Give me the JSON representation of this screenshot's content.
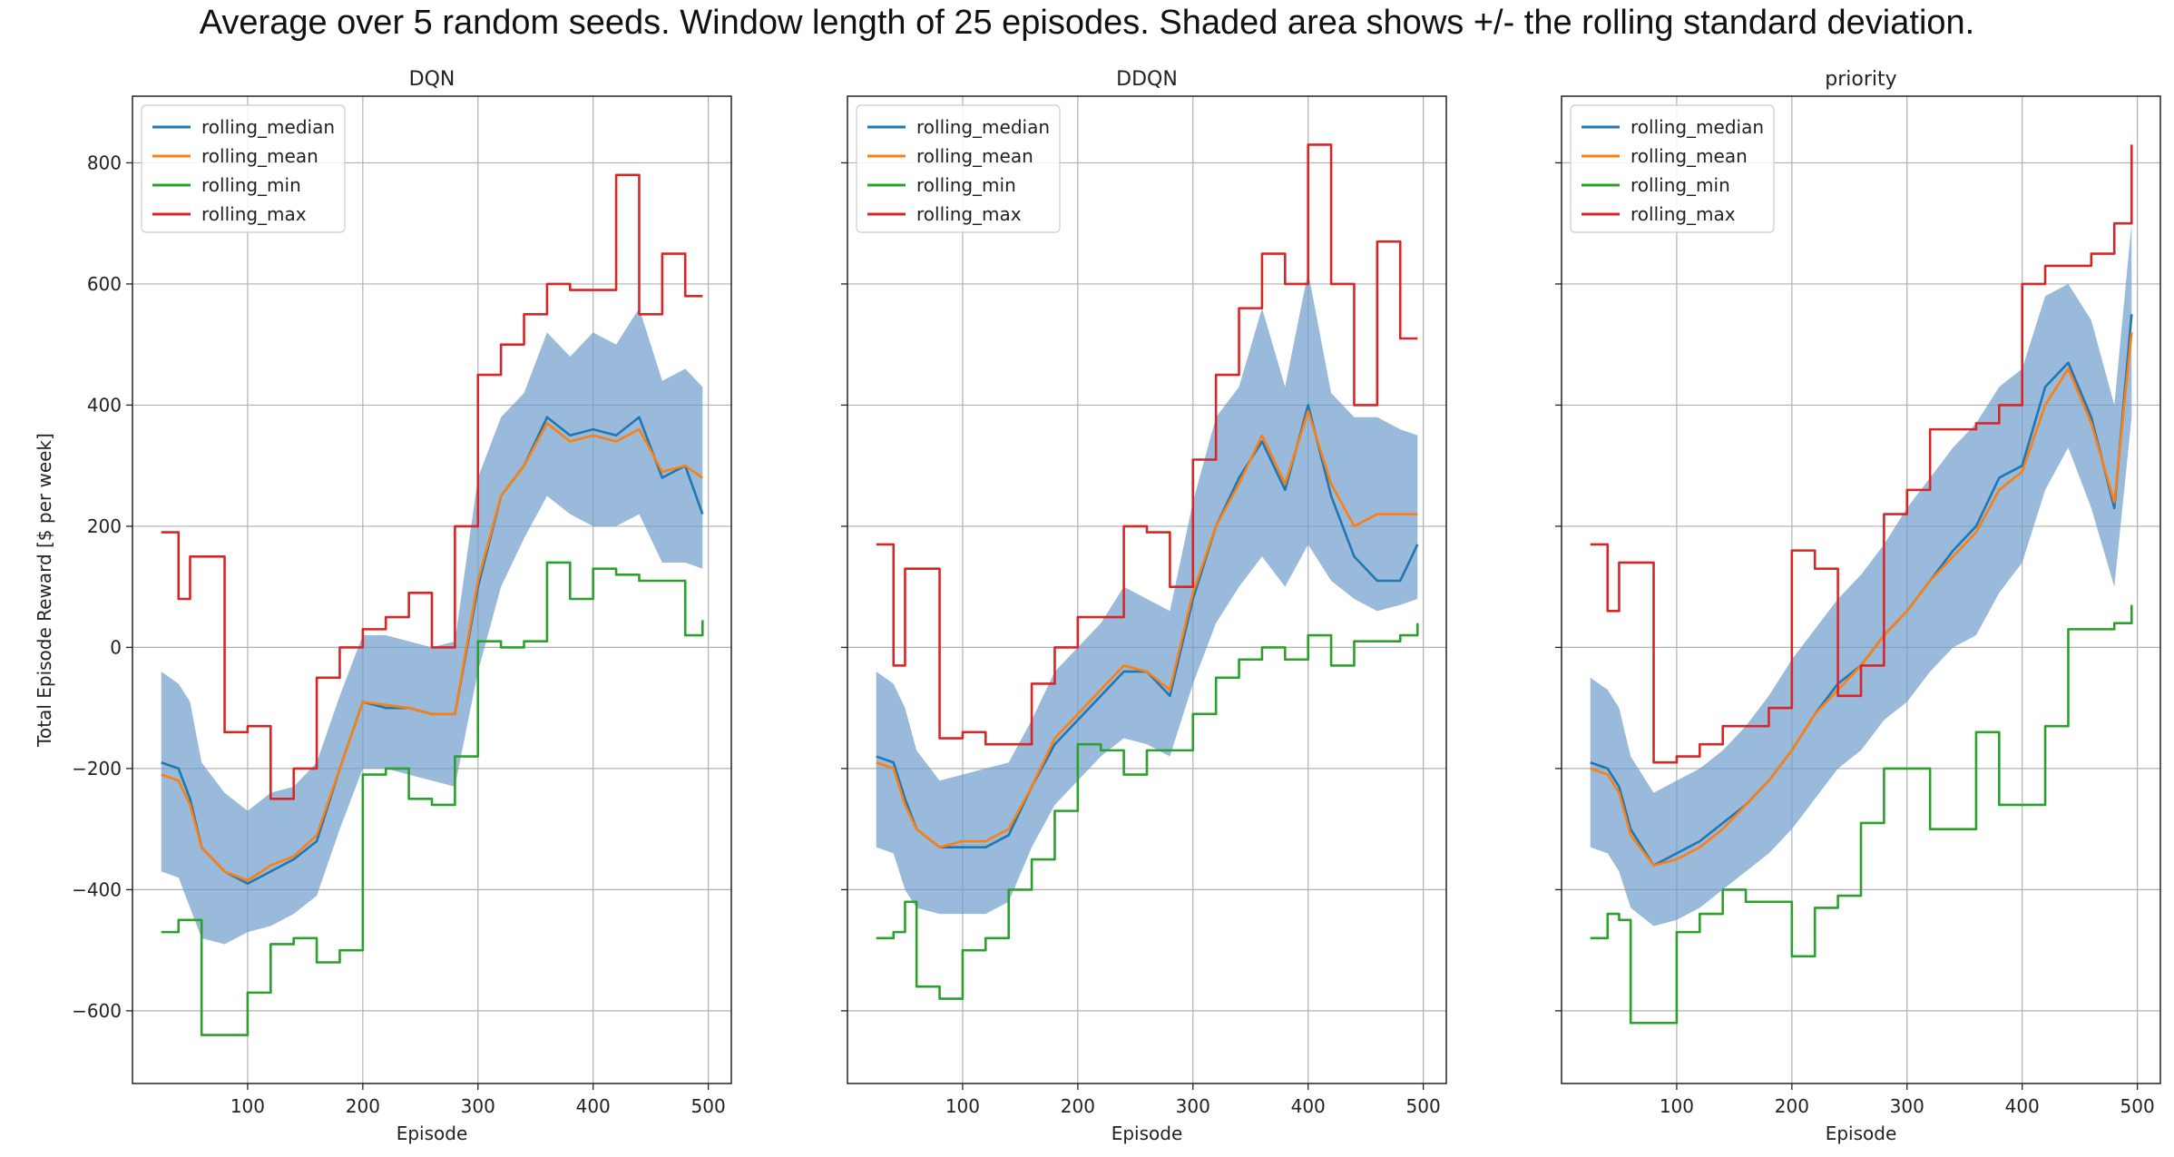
{
  "suptitle": "Average over 5 random seeds.  Window length of 25 episodes.  Shaded area shows +/- the rolling standard deviation.",
  "colors": {
    "median": "#1f77b4",
    "mean": "#ff7f0e",
    "min": "#2ca02c",
    "max": "#d62728",
    "band": "#6d9ccc"
  },
  "chart_data": [
    {
      "type": "line",
      "title": "DQN",
      "xlabel": "Episode",
      "ylabel": "Total Episode Reward [$ per week]",
      "xlim": [
        0,
        520
      ],
      "ylim": [
        -720,
        910
      ],
      "xticks": [
        100,
        200,
        300,
        400,
        500
      ],
      "yticks": [
        -600,
        -400,
        -200,
        0,
        200,
        400,
        600,
        800
      ],
      "grid": true,
      "legend_position": "upper-left",
      "series": [
        {
          "name": "rolling_median",
          "x": [
            25,
            40,
            50,
            60,
            80,
            100,
            120,
            140,
            160,
            180,
            200,
            220,
            240,
            260,
            280,
            300,
            320,
            340,
            360,
            380,
            400,
            420,
            440,
            460,
            480,
            495
          ],
          "values": [
            -190,
            -200,
            -250,
            -330,
            -370,
            -390,
            -370,
            -350,
            -320,
            -200,
            -90,
            -100,
            -100,
            -110,
            -110,
            100,
            250,
            300,
            380,
            350,
            360,
            350,
            380,
            280,
            300,
            220
          ]
        },
        {
          "name": "rolling_mean",
          "x": [
            25,
            40,
            50,
            60,
            80,
            100,
            120,
            140,
            160,
            180,
            200,
            220,
            240,
            260,
            280,
            300,
            320,
            340,
            360,
            380,
            400,
            420,
            440,
            460,
            480,
            495
          ],
          "values": [
            -210,
            -220,
            -260,
            -330,
            -370,
            -385,
            -360,
            -345,
            -310,
            -200,
            -90,
            -95,
            -100,
            -110,
            -110,
            110,
            250,
            300,
            370,
            340,
            350,
            340,
            360,
            290,
            300,
            280
          ]
        },
        {
          "name": "rolling_min",
          "x": [
            25,
            40,
            50,
            60,
            80,
            100,
            120,
            140,
            160,
            180,
            200,
            220,
            240,
            260,
            280,
            300,
            320,
            340,
            360,
            380,
            400,
            420,
            440,
            460,
            480,
            495
          ],
          "values": [
            -470,
            -450,
            -450,
            -640,
            -640,
            -570,
            -490,
            -480,
            -520,
            -500,
            -210,
            -200,
            -250,
            -260,
            -180,
            10,
            0,
            10,
            140,
            80,
            130,
            120,
            110,
            110,
            20,
            45
          ]
        },
        {
          "name": "rolling_max",
          "x": [
            25,
            40,
            50,
            60,
            80,
            100,
            120,
            140,
            160,
            180,
            200,
            220,
            240,
            260,
            280,
            300,
            320,
            340,
            360,
            380,
            400,
            420,
            440,
            460,
            480,
            495
          ],
          "values": [
            190,
            80,
            150,
            150,
            -140,
            -130,
            -250,
            -200,
            -50,
            0,
            30,
            50,
            90,
            0,
            200,
            450,
            500,
            550,
            600,
            590,
            590,
            780,
            550,
            650,
            580,
            580
          ]
        }
      ],
      "band": {
        "x": [
          25,
          40,
          50,
          60,
          80,
          100,
          120,
          140,
          160,
          180,
          200,
          220,
          240,
          260,
          280,
          300,
          320,
          340,
          360,
          380,
          400,
          420,
          440,
          460,
          480,
          495
        ],
        "upper": [
          -40,
          -60,
          -90,
          -190,
          -240,
          -270,
          -240,
          -230,
          -190,
          -80,
          20,
          20,
          10,
          0,
          10,
          280,
          380,
          420,
          520,
          480,
          520,
          500,
          560,
          440,
          460,
          430
        ],
        "lower": [
          -370,
          -380,
          -430,
          -480,
          -490,
          -470,
          -460,
          -440,
          -410,
          -300,
          -200,
          -200,
          -210,
          -220,
          -230,
          -40,
          100,
          180,
          250,
          220,
          200,
          200,
          220,
          140,
          140,
          130
        ]
      }
    },
    {
      "type": "line",
      "title": "DDQN",
      "xlabel": "Episode",
      "ylabel": "",
      "xlim": [
        0,
        520
      ],
      "ylim": [
        -720,
        910
      ],
      "xticks": [
        100,
        200,
        300,
        400,
        500
      ],
      "yticks": [
        -600,
        -400,
        -200,
        0,
        200,
        400,
        600,
        800
      ],
      "grid": true,
      "legend_position": "upper-left",
      "series": [
        {
          "name": "rolling_median",
          "x": [
            25,
            40,
            50,
            60,
            80,
            100,
            120,
            140,
            160,
            180,
            200,
            220,
            240,
            260,
            280,
            300,
            320,
            340,
            360,
            380,
            400,
            420,
            440,
            460,
            480,
            495
          ],
          "values": [
            -180,
            -190,
            -250,
            -300,
            -330,
            -330,
            -330,
            -310,
            -230,
            -160,
            -120,
            -80,
            -40,
            -40,
            -80,
            80,
            200,
            280,
            340,
            260,
            400,
            250,
            150,
            110,
            110,
            170
          ]
        },
        {
          "name": "rolling_mean",
          "x": [
            25,
            40,
            50,
            60,
            80,
            100,
            120,
            140,
            160,
            180,
            200,
            220,
            240,
            260,
            280,
            300,
            320,
            340,
            360,
            380,
            400,
            420,
            440,
            460,
            480,
            495
          ],
          "values": [
            -190,
            -200,
            -260,
            -300,
            -330,
            -320,
            -320,
            -300,
            -230,
            -150,
            -110,
            -70,
            -30,
            -40,
            -70,
            90,
            200,
            270,
            350,
            270,
            390,
            270,
            200,
            220,
            220,
            220
          ]
        },
        {
          "name": "rolling_min",
          "x": [
            25,
            40,
            50,
            60,
            80,
            100,
            120,
            140,
            160,
            180,
            200,
            220,
            240,
            260,
            280,
            300,
            320,
            340,
            360,
            380,
            400,
            420,
            440,
            460,
            480,
            495
          ],
          "values": [
            -480,
            -470,
            -420,
            -560,
            -580,
            -500,
            -480,
            -400,
            -350,
            -270,
            -160,
            -170,
            -210,
            -170,
            -170,
            -110,
            -50,
            -20,
            0,
            -20,
            20,
            -30,
            10,
            10,
            20,
            40
          ]
        },
        {
          "name": "rolling_max",
          "x": [
            25,
            40,
            50,
            60,
            80,
            100,
            120,
            140,
            160,
            180,
            200,
            220,
            240,
            260,
            280,
            300,
            320,
            340,
            360,
            380,
            400,
            420,
            440,
            460,
            480,
            495
          ],
          "values": [
            170,
            -30,
            130,
            130,
            -150,
            -140,
            -160,
            -160,
            -60,
            0,
            50,
            50,
            200,
            190,
            100,
            310,
            450,
            560,
            650,
            600,
            830,
            600,
            400,
            670,
            510,
            510
          ]
        },
        {
          "name": "rolling_std_band",
          "x": [
            25,
            40,
            50,
            60,
            80,
            100,
            120,
            140,
            160,
            180,
            200,
            220,
            240,
            260,
            280,
            300,
            320,
            340,
            360,
            380,
            400,
            420,
            440,
            460,
            480,
            495
          ],
          "values": [
            -40,
            -60,
            -100,
            -170,
            -220,
            -210,
            -200,
            -190,
            -120,
            -40,
            0,
            40,
            100,
            80,
            60,
            240,
            380,
            430,
            560,
            430,
            620,
            420,
            380,
            380,
            360,
            350
          ]
        }
      ],
      "band": {
        "x": [
          25,
          40,
          50,
          60,
          80,
          100,
          120,
          140,
          160,
          180,
          200,
          220,
          240,
          260,
          280,
          300,
          320,
          340,
          360,
          380,
          400,
          420,
          440,
          460,
          480,
          495
        ],
        "upper": [
          -40,
          -60,
          -100,
          -170,
          -220,
          -210,
          -200,
          -190,
          -120,
          -40,
          0,
          40,
          100,
          80,
          60,
          240,
          380,
          430,
          560,
          430,
          620,
          420,
          380,
          380,
          360,
          350
        ],
        "lower": [
          -330,
          -340,
          -400,
          -430,
          -440,
          -440,
          -440,
          -420,
          -330,
          -260,
          -220,
          -180,
          -150,
          -160,
          -180,
          -60,
          40,
          100,
          150,
          100,
          170,
          110,
          80,
          60,
          70,
          80
        ]
      }
    },
    {
      "type": "line",
      "title": "priority",
      "xlabel": "Episode",
      "ylabel": "",
      "xlim": [
        0,
        520
      ],
      "ylim": [
        -720,
        910
      ],
      "xticks": [
        100,
        200,
        300,
        400,
        500
      ],
      "yticks": [
        -600,
        -400,
        -200,
        0,
        200,
        400,
        600,
        800
      ],
      "grid": true,
      "legend_position": "upper-left",
      "series": [
        {
          "name": "rolling_median",
          "x": [
            25,
            40,
            50,
            60,
            80,
            100,
            120,
            140,
            160,
            180,
            200,
            220,
            240,
            260,
            280,
            300,
            320,
            340,
            360,
            380,
            400,
            420,
            440,
            460,
            480,
            495
          ],
          "values": [
            -190,
            -200,
            -230,
            -300,
            -360,
            -340,
            -320,
            -290,
            -260,
            -220,
            -170,
            -110,
            -60,
            -30,
            20,
            60,
            110,
            160,
            200,
            280,
            300,
            430,
            470,
            380,
            230,
            550
          ]
        },
        {
          "name": "rolling_mean",
          "x": [
            25,
            40,
            50,
            60,
            80,
            100,
            120,
            140,
            160,
            180,
            200,
            220,
            240,
            260,
            280,
            300,
            320,
            340,
            360,
            380,
            400,
            420,
            440,
            460,
            480,
            495
          ],
          "values": [
            -200,
            -210,
            -240,
            -310,
            -360,
            -350,
            -330,
            -300,
            -260,
            -220,
            -170,
            -110,
            -70,
            -30,
            20,
            60,
            110,
            150,
            190,
            260,
            290,
            400,
            460,
            370,
            240,
            520
          ]
        },
        {
          "name": "rolling_min",
          "x": [
            25,
            40,
            50,
            60,
            80,
            100,
            120,
            140,
            160,
            180,
            200,
            220,
            240,
            260,
            280,
            300,
            320,
            340,
            360,
            380,
            400,
            420,
            440,
            460,
            480,
            495
          ],
          "values": [
            -480,
            -440,
            -450,
            -620,
            -620,
            -470,
            -440,
            -400,
            -420,
            -420,
            -510,
            -430,
            -410,
            -290,
            -200,
            -200,
            -300,
            -300,
            -140,
            -260,
            -260,
            -130,
            30,
            30,
            40,
            70
          ]
        },
        {
          "name": "rolling_max",
          "x": [
            25,
            40,
            50,
            60,
            80,
            100,
            120,
            140,
            160,
            180,
            200,
            220,
            240,
            260,
            280,
            300,
            320,
            340,
            360,
            380,
            400,
            420,
            440,
            460,
            480,
            495
          ],
          "values": [
            170,
            60,
            140,
            140,
            -190,
            -180,
            -160,
            -130,
            -130,
            -100,
            160,
            130,
            -80,
            -30,
            220,
            260,
            360,
            360,
            370,
            400,
            600,
            630,
            630,
            650,
            700,
            830
          ]
        }
      ],
      "band": {
        "x": [
          25,
          40,
          50,
          60,
          80,
          100,
          120,
          140,
          160,
          180,
          200,
          220,
          240,
          260,
          280,
          300,
          320,
          340,
          360,
          380,
          400,
          420,
          440,
          460,
          480,
          495
        ],
        "upper": [
          -50,
          -70,
          -100,
          -180,
          -240,
          -220,
          -200,
          -170,
          -130,
          -80,
          -20,
          30,
          80,
          120,
          170,
          230,
          280,
          330,
          370,
          430,
          460,
          580,
          600,
          540,
          400,
          700
        ]
      },
      "band_lower": {
        "values": [
          -330,
          -340,
          -370,
          -430,
          -460,
          -450,
          -430,
          -400,
          -370,
          -340,
          -300,
          -250,
          -200,
          -170,
          -120,
          -90,
          -40,
          0,
          20,
          90,
          140,
          260,
          330,
          230,
          100,
          380
        ]
      }
    }
  ]
}
